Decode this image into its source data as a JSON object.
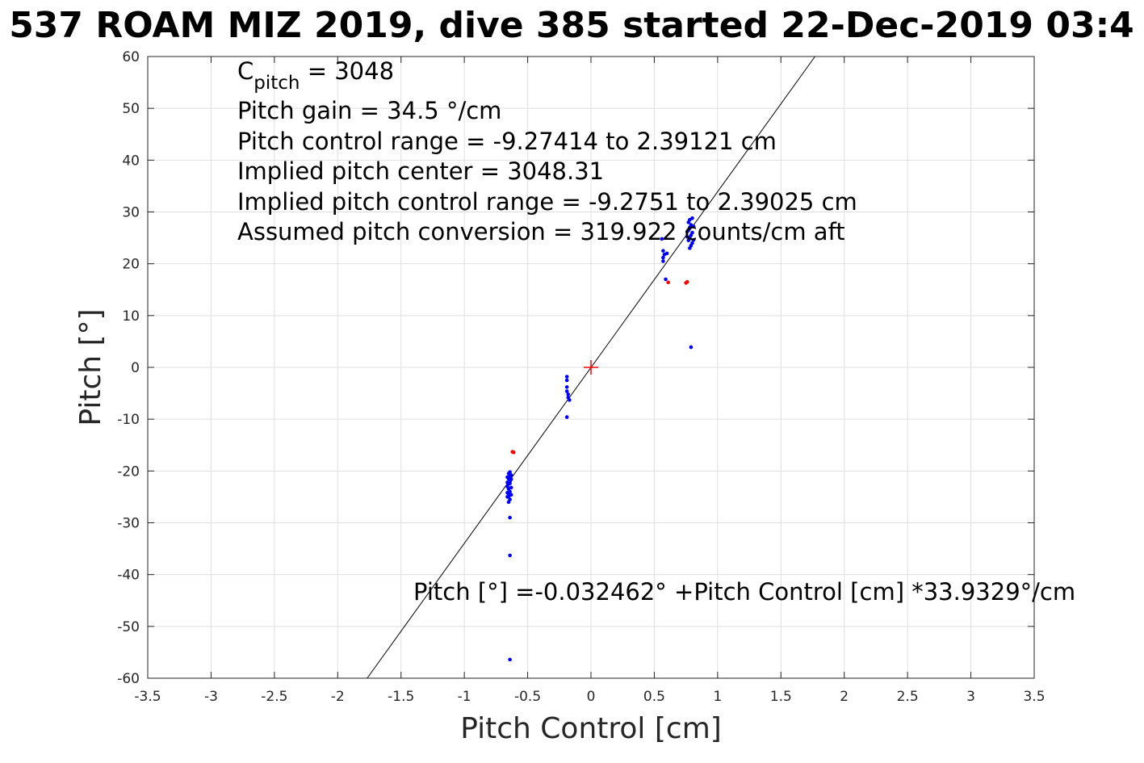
{
  "chart_data": {
    "type": "scatter",
    "title": "537 ROAM MIZ 2019, dive 385 started 22-Dec-2019 03:4",
    "xlabel": "Pitch Control [cm]",
    "ylabel": "Pitch [°]",
    "xlim": [
      -3.5,
      3.5
    ],
    "ylim": [
      -60,
      60
    ],
    "xticks": [
      "-3.5",
      "-3",
      "-2.5",
      "-2",
      "-1.5",
      "-1",
      "-0.5",
      "0",
      "0.5",
      "1",
      "1.5",
      "2",
      "2.5",
      "3",
      "3.5"
    ],
    "yticks": [
      "60",
      "50",
      "40",
      "30",
      "20",
      "10",
      "0",
      "-10",
      "-20",
      "-30",
      "-40",
      "-50",
      "-60"
    ],
    "grid": true,
    "annotations": {
      "line1_main": "C",
      "line1_sub": "pitch",
      "line1_rest": " = 3048",
      "line2": "Pitch gain = 34.5 °/cm",
      "line3": "Pitch control range = -9.27414 to 2.39121 cm",
      "line4": "Implied pitch center = 3048.31",
      "line5": "Implied pitch control range = -9.2751 to 2.39025 cm",
      "line6": "Assumed pitch conversion = 319.922 counts/cm aft",
      "fit": "Pitch [°] =-0.032462° +Pitch Control [cm] *33.9329°/cm"
    },
    "fit_line": {
      "intercept": -0.032462,
      "slope": 33.9329,
      "color": "#000000"
    },
    "center_marker": {
      "x": 0,
      "y": 0,
      "color": "#ff0000"
    },
    "series": [
      {
        "color": "#0000ff",
        "points": [
          [
            -0.65,
            -20.5
          ],
          [
            -0.64,
            -21
          ],
          [
            -0.65,
            -21.5
          ],
          [
            -0.64,
            -22
          ],
          [
            -0.65,
            -22.5
          ],
          [
            -0.66,
            -23
          ],
          [
            -0.65,
            -23.5
          ],
          [
            -0.64,
            -24
          ],
          [
            -0.65,
            -24.5
          ],
          [
            -0.66,
            -25
          ],
          [
            -0.64,
            -25.5
          ],
          [
            -0.65,
            -26
          ],
          [
            -0.63,
            -20.8
          ],
          [
            -0.63,
            -21.6
          ],
          [
            -0.64,
            -22.4
          ],
          [
            -0.63,
            -23.2
          ],
          [
            -0.66,
            -21.2
          ],
          [
            -0.66,
            -22.2
          ],
          [
            -0.66,
            -24.2
          ],
          [
            -0.64,
            -20.2
          ],
          [
            -0.65,
            -25
          ],
          [
            -0.63,
            -24.6
          ],
          [
            -0.64,
            -29
          ],
          [
            -0.64,
            -36.3
          ],
          [
            -0.64,
            -56.4
          ],
          [
            -0.19,
            -1.8
          ],
          [
            -0.19,
            -2.5
          ],
          [
            -0.19,
            -3.8
          ],
          [
            -0.19,
            -4.6
          ],
          [
            -0.18,
            -5.2
          ],
          [
            -0.18,
            -5.8
          ],
          [
            -0.17,
            -6.3
          ],
          [
            -0.19,
            -9.6
          ],
          [
            0.56,
            24.8
          ],
          [
            0.57,
            22.5
          ],
          [
            0.58,
            21.8
          ],
          [
            0.57,
            21.2
          ],
          [
            0.57,
            20.5
          ],
          [
            0.6,
            22
          ],
          [
            0.59,
            17
          ],
          [
            0.78,
            28.5
          ],
          [
            0.77,
            28
          ],
          [
            0.79,
            27.5
          ],
          [
            0.78,
            27
          ],
          [
            0.77,
            26.5
          ],
          [
            0.8,
            26
          ],
          [
            0.79,
            25.5
          ],
          [
            0.78,
            25
          ],
          [
            0.77,
            24.5
          ],
          [
            0.8,
            24
          ],
          [
            0.79,
            23.5
          ],
          [
            0.78,
            23
          ],
          [
            0.76,
            26.2
          ],
          [
            0.76,
            25.2
          ],
          [
            0.81,
            27.2
          ],
          [
            0.81,
            24.6
          ],
          [
            0.8,
            28.8
          ],
          [
            0.79,
            3.9
          ]
        ]
      },
      {
        "color": "#ff0000",
        "points": [
          [
            -0.62,
            -16.3
          ],
          [
            -0.61,
            -16.4
          ],
          [
            0.61,
            16.4
          ],
          [
            0.75,
            16.3
          ],
          [
            0.76,
            16.5
          ]
        ]
      }
    ]
  }
}
